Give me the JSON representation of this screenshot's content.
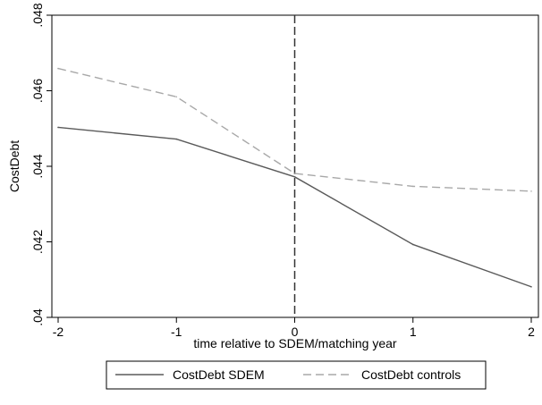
{
  "chart_data": {
    "type": "line",
    "title": "",
    "xlabel": "time relative to SDEM/matching year",
    "ylabel": "CostDebt",
    "x": [
      -2,
      -1,
      0,
      1,
      2
    ],
    "xlim": [
      -2,
      2
    ],
    "ylim": [
      0.04,
      0.048
    ],
    "x_ticks": [
      {
        "value": -2,
        "label": "-2"
      },
      {
        "value": -1,
        "label": "-1"
      },
      {
        "value": 0,
        "label": "0"
      },
      {
        "value": 1,
        "label": "1"
      },
      {
        "value": 2,
        "label": "2"
      }
    ],
    "y_ticks": [
      {
        "value": 0.04,
        "label": ".04"
      },
      {
        "value": 0.042,
        "label": ".042"
      },
      {
        "value": 0.044,
        "label": ".044"
      },
      {
        "value": 0.046,
        "label": ".046"
      },
      {
        "value": 0.048,
        "label": ".048"
      }
    ],
    "vline": {
      "x": 0,
      "style": "dashed",
      "color": "#333333"
    },
    "grid": false,
    "legend_position": "bottom",
    "series": [
      {
        "name": "CostDebt SDEM",
        "values": [
          0.04503,
          0.04472,
          0.04372,
          0.04193,
          0.04081
        ],
        "color": "#5a5a5a",
        "style": "solid"
      },
      {
        "name": "CostDebt controls",
        "values": [
          0.04659,
          0.04584,
          0.04381,
          0.04347,
          0.04334
        ],
        "color": "#a8a8a8",
        "style": "dashed"
      }
    ]
  }
}
